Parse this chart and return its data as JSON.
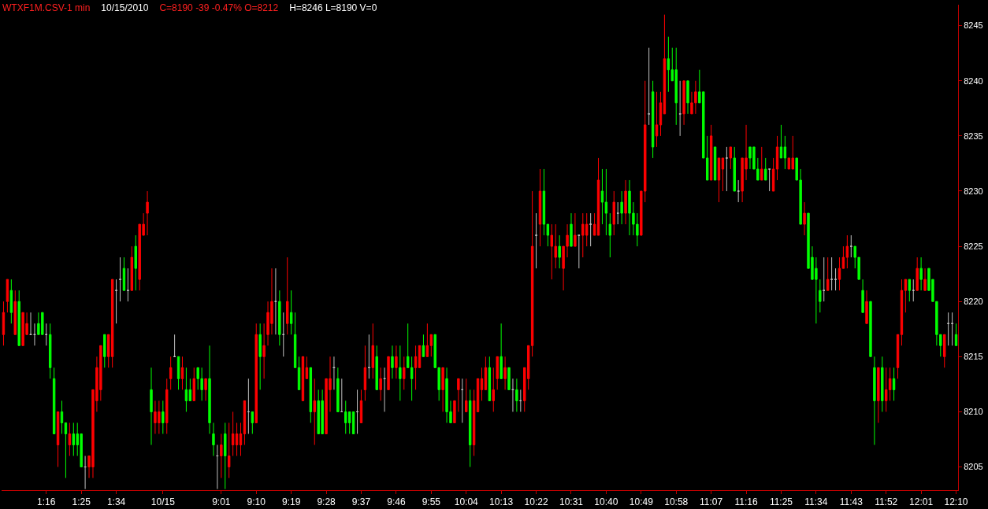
{
  "chart_data": {
    "type": "candlestick",
    "title": "WTXF1M.CSV-1 min",
    "subtitle": "10/15/2010",
    "annotations": [
      "C=8190 -39 -0.47% O=8212",
      "H=8246 L=8190 V=0"
    ],
    "categories": [
      null,
      null,
      null,
      null,
      null,
      null,
      null,
      null,
      null,
      null,
      null,
      "1:16",
      null,
      null,
      null,
      null,
      null,
      null,
      null,
      null,
      "1:25",
      null,
      null,
      null,
      null,
      null,
      null,
      null,
      null,
      "1:34",
      null,
      null,
      null,
      null,
      null,
      null,
      null,
      null,
      null,
      null,
      null,
      "10/15",
      null,
      null,
      null,
      null,
      null,
      null,
      null,
      null,
      null,
      null,
      null,
      null,
      null,
      null,
      "9:01",
      null,
      null,
      null,
      null,
      null,
      null,
      null,
      null,
      "9:10",
      null,
      null,
      null,
      null,
      null,
      null,
      null,
      null,
      "9:19",
      null,
      null,
      null,
      null,
      null,
      null,
      null,
      null,
      "9:28",
      null,
      null,
      null,
      null,
      null,
      null,
      null,
      null,
      "9:37",
      null,
      null,
      null,
      null,
      null,
      null,
      null,
      null,
      "9:46",
      null,
      null,
      null,
      null,
      null,
      null,
      null,
      null,
      "9:55",
      null,
      null,
      null,
      null,
      null,
      null,
      null,
      null,
      "10:04",
      null,
      null,
      null,
      null,
      null,
      null,
      null,
      null,
      "10:13",
      null,
      null,
      null,
      null,
      null,
      null,
      null,
      null,
      "10:22",
      null,
      null,
      null,
      null,
      null,
      null,
      null,
      null,
      "10:31",
      null,
      null,
      null,
      null,
      null,
      null,
      null,
      null,
      "10:40",
      null,
      null,
      null,
      null,
      null,
      null,
      null,
      null,
      "10:49",
      null,
      null,
      null,
      null,
      null,
      null,
      null,
      null,
      "10:58",
      null,
      null,
      null,
      null,
      null,
      null,
      null,
      null,
      "11:07",
      null,
      null,
      null,
      null,
      null,
      null,
      null,
      null,
      "11:16",
      null,
      null,
      null,
      null,
      null,
      null,
      null,
      null,
      "11:25",
      null,
      null,
      null,
      null,
      null,
      null,
      null,
      null,
      "11:34",
      null,
      null,
      null,
      null,
      null,
      null,
      null,
      null,
      "11:43",
      null,
      null,
      null,
      null,
      null,
      null,
      null,
      null,
      "11:52",
      null,
      null,
      null,
      null,
      null,
      null,
      null,
      null,
      "12:01",
      null,
      null,
      null,
      null,
      null,
      null,
      null,
      null,
      "12:10"
    ],
    "ohlc": [
      [
        8217,
        8220,
        8216,
        8219
      ],
      [
        8220,
        8222,
        8219,
        8222
      ],
      [
        8221,
        8222,
        8218,
        8219
      ],
      [
        8217,
        8221,
        8217,
        8220
      ],
      [
        8220,
        8221,
        8216,
        8216
      ],
      [
        8216,
        8219,
        8216,
        8219
      ],
      [
        8217,
        8219,
        8217,
        8218
      ],
      [
        8217,
        8219,
        8217,
        8217
      ],
      [
        8217,
        8218,
        8216,
        8217
      ],
      [
        8218,
        8219,
        8217,
        8217
      ],
      [
        8219,
        8219,
        8217,
        8217
      ],
      [
        8217,
        8218,
        8216,
        8217
      ],
      [
        8217,
        8218,
        8213,
        8214
      ],
      [
        8213,
        8214,
        8208,
        8208
      ],
      [
        8207,
        8210,
        8205,
        8210
      ],
      [
        8210,
        8211,
        8208,
        8209
      ],
      [
        8209,
        8209,
        8204,
        8208
      ],
      [
        8207,
        8209,
        8206,
        8208
      ],
      [
        8208,
        8209,
        8206,
        8207
      ],
      [
        8208,
        8209,
        8206,
        8207
      ],
      [
        8208,
        8208,
        8205,
        8205
      ],
      [
        8205,
        8206,
        8203,
        8205
      ],
      [
        8205,
        8206,
        8204,
        8206
      ],
      [
        8205,
        8212,
        8204,
        8212
      ],
      [
        8211,
        8215,
        8210,
        8214
      ],
      [
        8212,
        8216,
        8211,
        8216
      ],
      [
        8217,
        8217,
        8214,
        8215
      ],
      [
        8215,
        8217,
        8214,
        8217
      ],
      [
        8215,
        8222,
        8214,
        8222
      ],
      [
        8221,
        8222,
        8218,
        8221
      ],
      [
        8222,
        8224,
        8220,
        8222
      ],
      [
        8223,
        8224,
        8221,
        8221
      ],
      [
        8221,
        8223,
        8220,
        8221
      ],
      [
        8221,
        8225,
        8221,
        8224
      ],
      [
        8225,
        8226,
        8221,
        8223
      ],
      [
        8222,
        8227,
        8221,
        8227
      ],
      [
        8226,
        8228,
        8226,
        8227
      ],
      [
        8228,
        8230,
        8226,
        8229
      ],
      [
        8212,
        8214,
        8207,
        8210
      ],
      [
        8209,
        8211,
        8208,
        8210
      ],
      [
        8209,
        8211,
        8208,
        8210
      ],
      [
        8210,
        8211,
        8208,
        8209
      ],
      [
        8209,
        8213,
        8208,
        8212
      ],
      [
        8213,
        8215,
        8212,
        8214
      ],
      [
        8215,
        8217,
        8215,
        8215
      ],
      [
        8215,
        8215,
        8212,
        8213
      ],
      [
        8213,
        8215,
        8212,
        8214
      ],
      [
        8212,
        8214,
        8210,
        8211
      ],
      [
        8212,
        8213,
        8211,
        8211
      ],
      [
        8211,
        8214,
        8211,
        8213
      ],
      [
        8214,
        8214,
        8212,
        8213
      ],
      [
        8213,
        8214,
        8211,
        8212
      ],
      [
        8212,
        8213,
        8211,
        8213
      ],
      [
        8213,
        8216,
        8208,
        8209
      ],
      [
        8208,
        8209,
        8206,
        8207
      ],
      [
        8206,
        8207,
        8203,
        8206
      ],
      [
        8206,
        8208,
        8204,
        8207
      ],
      [
        8208,
        8209,
        8203,
        8206
      ],
      [
        8205,
        8209,
        8204,
        8206
      ],
      [
        8207,
        8210,
        8206,
        8208
      ],
      [
        8207,
        8209,
        8206,
        8208
      ],
      [
        8207,
        8209,
        8206,
        8208
      ],
      [
        8208,
        8211,
        8207,
        8211
      ],
      [
        8210,
        8213,
        8208,
        8210
      ],
      [
        8210,
        8210,
        8208,
        8209
      ],
      [
        8209,
        8218,
        8209,
        8217
      ],
      [
        8217,
        8218,
        8212,
        8215
      ],
      [
        8215,
        8218,
        8213,
        8216
      ],
      [
        8217,
        8220,
        8216,
        8219
      ],
      [
        8218,
        8223,
        8217,
        8220
      ],
      [
        8220,
        8223,
        8217,
        8220
      ],
      [
        8220,
        8221,
        8216,
        8217
      ],
      [
        8217,
        8219,
        8215,
        8217
      ],
      [
        8218,
        8224,
        8217,
        8220
      ],
      [
        8219,
        8221,
        8217,
        8218
      ],
      [
        8217,
        8219,
        8214,
        8214
      ],
      [
        8214,
        8215,
        8212,
        8212
      ],
      [
        8211,
        8215,
        8211,
        8215
      ],
      [
        8213,
        8215,
        8213,
        8214
      ],
      [
        8214,
        8214,
        8209,
        8210
      ],
      [
        8210,
        8213,
        8207,
        8211
      ],
      [
        8211,
        8212,
        8208,
        8208
      ],
      [
        8211,
        8212,
        8208,
        8208
      ],
      [
        8208,
        8213,
        8208,
        8213
      ],
      [
        8212,
        8215,
        8210,
        8213
      ],
      [
        8214,
        8215,
        8212,
        8214
      ],
      [
        8213,
        8214,
        8210,
        8210
      ],
      [
        8210,
        8213,
        8210,
        8210
      ],
      [
        8210,
        8211,
        8208,
        8209
      ],
      [
        8210,
        8210,
        8208,
        8209
      ],
      [
        8210,
        8210,
        8208,
        8208
      ],
      [
        8210,
        8212,
        8208,
        8210
      ],
      [
        8209,
        8212,
        8209,
        8211
      ],
      [
        8212,
        8216,
        8211,
        8214
      ],
      [
        8214,
        8217,
        8213,
        8214
      ],
      [
        8214,
        8218,
        8213,
        8216
      ],
      [
        8215,
        8216,
        8212,
        8212
      ],
      [
        8212,
        8214,
        8211,
        8213
      ],
      [
        8213,
        8214,
        8210,
        8213
      ],
      [
        8212,
        8215,
        8212,
        8215
      ],
      [
        8215,
        8216,
        8213,
        8214
      ],
      [
        8214,
        8216,
        8213,
        8215
      ],
      [
        8214,
        8216,
        8211,
        8213
      ],
      [
        8213,
        8215,
        8212,
        8214
      ],
      [
        8215,
        8218,
        8214,
        8214
      ],
      [
        8214,
        8215,
        8211,
        8213
      ],
      [
        8214,
        8216,
        8212,
        8215
      ],
      [
        8214,
        8216,
        8214,
        8216
      ],
      [
        8216,
        8217,
        8215,
        8215
      ],
      [
        8215,
        8218,
        8215,
        8216
      ],
      [
        8216,
        8217,
        8215,
        8217
      ],
      [
        8217,
        8217,
        8214,
        8214
      ],
      [
        8214,
        8214,
        8211,
        8212
      ],
      [
        8212,
        8214,
        8210,
        8214
      ],
      [
        8213,
        8214,
        8209,
        8210
      ],
      [
        8210,
        8211,
        8209,
        8209
      ],
      [
        8209,
        8211,
        8209,
        8211
      ],
      [
        8212,
        8213,
        8210,
        8213
      ],
      [
        8212,
        8213,
        8209,
        8212
      ],
      [
        8210,
        8213,
        8210,
        8211
      ],
      [
        8211,
        8212,
        8205,
        8207
      ],
      [
        8207,
        8212,
        8206,
        8211
      ],
      [
        8210,
        8213,
        8210,
        8213
      ],
      [
        8212,
        8214,
        8211,
        8213
      ],
      [
        8212,
        8215,
        8212,
        8214
      ],
      [
        8214,
        8215,
        8211,
        8211
      ],
      [
        8211,
        8214,
        8210,
        8212
      ],
      [
        8213,
        8215,
        8212,
        8215
      ],
      [
        8215,
        8218,
        8213,
        8213
      ],
      [
        8213,
        8215,
        8212,
        8214
      ],
      [
        8214,
        8214,
        8212,
        8212
      ],
      [
        8212,
        8213,
        8210,
        8212
      ],
      [
        8212,
        8213,
        8210,
        8211
      ],
      [
        8211,
        8212,
        8210,
        8211
      ],
      [
        8211,
        8214,
        8210,
        8214
      ],
      [
        8213,
        8216,
        8212,
        8216
      ],
      [
        8216,
        8230,
        8215,
        8225
      ],
      [
        8226,
        8228,
        8223,
        8226
      ],
      [
        8227,
        8232,
        8225,
        8230
      ],
      [
        8230,
        8232,
        8226,
        8227
      ],
      [
        8227,
        8227,
        8225,
        8226
      ],
      [
        8225,
        8227,
        8222,
        8226
      ],
      [
        8224,
        8227,
        8223,
        8225
      ],
      [
        8225,
        8226,
        8223,
        8224
      ],
      [
        8223,
        8225,
        8221,
        8225
      ],
      [
        8225,
        8227,
        8224,
        8226
      ],
      [
        8227,
        8228,
        8225,
        8225
      ],
      [
        8225,
        8228,
        8225,
        8226
      ],
      [
        8226,
        8226,
        8223,
        8226
      ],
      [
        8226,
        8228,
        8224,
        8227
      ],
      [
        8226,
        8228,
        8225,
        8227
      ],
      [
        8227,
        8228,
        8225,
        8227
      ],
      [
        8226,
        8228,
        8226,
        8227
      ],
      [
        8226,
        8233,
        8226,
        8231
      ],
      [
        8230,
        8232,
        8227,
        8229
      ],
      [
        8229,
        8232,
        8226,
        8228
      ],
      [
        8227,
        8228,
        8224,
        8226
      ],
      [
        8227,
        8230,
        8226,
        8229
      ],
      [
        8228,
        8229,
        8227,
        8228
      ],
      [
        8229,
        8230,
        8227,
        8228
      ],
      [
        8228,
        8231,
        8227,
        8230
      ],
      [
        8230,
        8231,
        8226,
        8228
      ],
      [
        8228,
        8229,
        8226,
        8227
      ],
      [
        8227,
        8228,
        8225,
        8226
      ],
      [
        8226,
        8230,
        8226,
        8230
      ],
      [
        8230,
        8240,
        8229,
        8236
      ],
      [
        8237,
        8243,
        8236,
        8237
      ],
      [
        8239,
        8240,
        8233,
        8234
      ],
      [
        8235,
        8239,
        8234,
        8236
      ],
      [
        8236,
        8239,
        8235,
        8238
      ],
      [
        8237,
        8246,
        8237,
        8242
      ],
      [
        8242,
        8244,
        8239,
        8241
      ],
      [
        8241,
        8243,
        8240,
        8240
      ],
      [
        8241,
        8243,
        8236,
        8238
      ],
      [
        8237,
        8240,
        8235,
        8237
      ],
      [
        8237,
        8240,
        8236,
        8240
      ],
      [
        8240,
        8240,
        8237,
        8238
      ],
      [
        8237,
        8239,
        8237,
        8238
      ],
      [
        8238,
        8240,
        8237,
        8239
      ],
      [
        8239,
        8241,
        8238,
        8238
      ],
      [
        8239,
        8239,
        8233,
        8233
      ],
      [
        8233,
        8235,
        8231,
        8231
      ],
      [
        8231,
        8236,
        8231,
        8235
      ],
      [
        8234,
        8234,
        8231,
        8231
      ],
      [
        8231,
        8233,
        8229,
        8233
      ],
      [
        8232,
        8233,
        8230,
        8233
      ],
      [
        8233,
        8234,
        8230,
        8233
      ],
      [
        8233,
        8234,
        8232,
        8234
      ],
      [
        8233,
        8234,
        8230,
        8230
      ],
      [
        8230,
        8231,
        8229,
        8230
      ],
      [
        8230,
        8233,
        8229,
        8233
      ],
      [
        8232,
        8236,
        8231,
        8233
      ],
      [
        8234,
        8234,
        8232,
        8233
      ],
      [
        8234,
        8234,
        8232,
        8232
      ],
      [
        8232,
        8233,
        8231,
        8231
      ],
      [
        8231,
        8234,
        8231,
        8232
      ],
      [
        8232,
        8233,
        8231,
        8231
      ],
      [
        8232,
        8232,
        8230,
        8232
      ],
      [
        8230,
        8233,
        8230,
        8232
      ],
      [
        8232,
        8235,
        8231,
        8234
      ],
      [
        8234,
        8236,
        8233,
        8233
      ],
      [
        8234,
        8235,
        8232,
        8233
      ],
      [
        8232,
        8233,
        8232,
        8233
      ],
      [
        8232,
        8235,
        8232,
        8233
      ],
      [
        8233,
        8233,
        8231,
        8231
      ],
      [
        8231,
        8232,
        8227,
        8227
      ],
      [
        8227,
        8229,
        8226,
        8228
      ],
      [
        8228,
        8228,
        8223,
        8223
      ],
      [
        8224,
        8225,
        8222,
        8222
      ],
      [
        8223,
        8224,
        8218,
        8222
      ],
      [
        8221,
        8222,
        8219,
        8220
      ],
      [
        8221,
        8224,
        8220,
        8221
      ],
      [
        8221,
        8224,
        8221,
        8222
      ],
      [
        8222,
        8224,
        8221,
        8222
      ],
      [
        8222,
        8223,
        8221,
        8222
      ],
      [
        8222,
        8224,
        8221,
        8223
      ],
      [
        8223,
        8225,
        8223,
        8224
      ],
      [
        8224,
        8226,
        8223,
        8225
      ],
      [
        8225,
        8226,
        8224,
        8225
      ],
      [
        8225,
        8225,
        8223,
        8224
      ],
      [
        8224,
        8224,
        8222,
        8222
      ],
      [
        8221,
        8222,
        8219,
        8219
      ],
      [
        8218,
        8221,
        8218,
        8220
      ],
      [
        8220,
        8220,
        8215,
        8215
      ],
      [
        8214,
        8215,
        8207,
        8211
      ],
      [
        8211,
        8214,
        8209,
        8214
      ],
      [
        8214,
        8215,
        8210,
        8211
      ],
      [
        8211,
        8214,
        8210,
        8212
      ],
      [
        8212,
        8214,
        8211,
        8213
      ],
      [
        8213,
        8214,
        8211,
        8212
      ],
      [
        8214,
        8217,
        8213,
        8217
      ],
      [
        8217,
        8222,
        8216,
        8221
      ],
      [
        8221,
        8222,
        8219,
        8222
      ],
      [
        8222,
        8222,
        8220,
        8221
      ],
      [
        8221,
        8222,
        8220,
        8221
      ],
      [
        8221,
        8224,
        8221,
        8223
      ],
      [
        8223,
        8224,
        8221,
        8222
      ],
      [
        8221,
        8223,
        8221,
        8222
      ],
      [
        8223,
        8223,
        8221,
        8221
      ],
      [
        8222,
        8222,
        8220,
        8220
      ],
      [
        8220,
        8220,
        8216,
        8217
      ],
      [
        8217,
        8217,
        8215,
        8216
      ],
      [
        8215,
        8217,
        8214,
        8217
      ],
      [
        8218,
        8219,
        8216,
        8218
      ],
      [
        8218,
        8219,
        8216,
        8218
      ],
      [
        8217,
        8218,
        8216,
        8216
      ]
    ],
    "colors": [
      "#ff0000",
      "#ff0000",
      "#00ff00",
      "#ff0000",
      "#00ff00",
      "#ff0000",
      "#ff0000",
      "#c0c0c0",
      "#c0c0c0",
      "#00ff00",
      "#00ff00",
      "#c0c0c0",
      "#00ff00",
      "#00ff00",
      "#ff0000",
      "#00ff00",
      "#00ff00",
      "#ff0000",
      "#00ff00",
      "#00ff00",
      "#00ff00",
      "#c0c0c0",
      "#ff0000",
      "#ff0000",
      "#ff0000",
      "#ff0000",
      "#00ff00",
      "#ff0000",
      "#ff0000",
      "#c0c0c0",
      "#c0c0c0",
      "#00ff00",
      "#c0c0c0",
      "#ff0000",
      "#00ff00",
      "#ff0000",
      "#ff0000",
      "#ff0000",
      "#00ff00",
      "#ff0000",
      "#ff0000",
      "#00ff00",
      "#ff0000",
      "#ff0000",
      "#c0c0c0",
      "#00ff00",
      "#ff0000",
      "#00ff00",
      "#00ff00",
      "#ff0000",
      "#00ff00",
      "#00ff00",
      "#ff0000",
      "#00ff00",
      "#00ff00",
      "#c0c0c0",
      "#ff0000",
      "#00ff00",
      "#ff0000",
      "#ff0000",
      "#ff0000",
      "#ff0000",
      "#ff0000",
      "#c0c0c0",
      "#00ff00",
      "#ff0000",
      "#00ff00",
      "#ff0000",
      "#ff0000",
      "#ff0000",
      "#c0c0c0",
      "#00ff00",
      "#c0c0c0",
      "#ff0000",
      "#00ff00",
      "#00ff00",
      "#00ff00",
      "#ff0000",
      "#ff0000",
      "#00ff00",
      "#ff0000",
      "#00ff00",
      "#00ff00",
      "#ff0000",
      "#ff0000",
      "#c0c0c0",
      "#00ff00",
      "#c0c0c0",
      "#00ff00",
      "#00ff00",
      "#00ff00",
      "#c0c0c0",
      "#ff0000",
      "#ff0000",
      "#c0c0c0",
      "#ff0000",
      "#00ff00",
      "#ff0000",
      "#c0c0c0",
      "#ff0000",
      "#00ff00",
      "#ff0000",
      "#00ff00",
      "#ff0000",
      "#00ff00",
      "#00ff00",
      "#ff0000",
      "#ff0000",
      "#00ff00",
      "#ff0000",
      "#ff0000",
      "#00ff00",
      "#00ff00",
      "#ff0000",
      "#00ff00",
      "#00ff00",
      "#ff0000",
      "#ff0000",
      "#c0c0c0",
      "#ff0000",
      "#00ff00",
      "#ff0000",
      "#ff0000",
      "#ff0000",
      "#ff0000",
      "#00ff00",
      "#ff0000",
      "#ff0000",
      "#00ff00",
      "#ff0000",
      "#00ff00",
      "#c0c0c0",
      "#00ff00",
      "#c0c0c0",
      "#ff0000",
      "#ff0000",
      "#ff0000",
      "#c0c0c0",
      "#ff0000",
      "#00ff00",
      "#00ff00",
      "#ff0000",
      "#ff0000",
      "#00ff00",
      "#ff0000",
      "#ff0000",
      "#00ff00",
      "#ff0000",
      "#c0c0c0",
      "#ff0000",
      "#ff0000",
      "#c0c0c0",
      "#ff0000",
      "#ff0000",
      "#00ff00",
      "#00ff00",
      "#00ff00",
      "#ff0000",
      "#c0c0c0",
      "#00ff00",
      "#ff0000",
      "#00ff00",
      "#00ff00",
      "#00ff00",
      "#ff0000",
      "#ff0000",
      "#c0c0c0",
      "#00ff00",
      "#ff0000",
      "#ff0000",
      "#ff0000",
      "#00ff00",
      "#00ff00",
      "#00ff00",
      "#c0c0c0",
      "#ff0000",
      "#00ff00",
      "#ff0000",
      "#ff0000",
      "#00ff00",
      "#00ff00",
      "#00ff00",
      "#ff0000",
      "#00ff00",
      "#ff0000",
      "#ff0000",
      "#c0c0c0",
      "#ff0000",
      "#00ff00",
      "#c0c0c0",
      "#ff0000",
      "#ff0000",
      "#00ff00",
      "#00ff00",
      "#00ff00",
      "#ff0000",
      "#00ff00",
      "#c0c0c0",
      "#ff0000",
      "#ff0000",
      "#00ff00",
      "#00ff00",
      "#ff0000",
      "#ff0000",
      "#00ff00",
      "#00ff00",
      "#ff0000",
      "#00ff00",
      "#00ff00",
      "#00ff00",
      "#00ff00",
      "#c0c0c0",
      "#ff0000",
      "#c0c0c0",
      "#c0c0c0",
      "#ff0000",
      "#ff0000",
      "#ff0000",
      "#c0c0c0",
      "#00ff00",
      "#00ff00",
      "#00ff00",
      "#ff0000",
      "#00ff00",
      "#00ff00",
      "#ff0000",
      "#00ff00",
      "#ff0000",
      "#ff0000",
      "#00ff00",
      "#ff0000",
      "#ff0000",
      "#ff0000",
      "#00ff00",
      "#c0c0c0",
      "#ff0000",
      "#00ff00",
      "#ff0000",
      "#00ff00",
      "#00ff00",
      "#00ff00",
      "#00ff00",
      "#ff0000",
      "#c0c0c0",
      "#c0c0c0",
      "#00ff00"
    ],
    "ylim": [
      8202.9,
      8246.9
    ],
    "yticks": [
      8205,
      8210,
      8215,
      8220,
      8225,
      8230,
      8235,
      8240,
      8245
    ]
  }
}
